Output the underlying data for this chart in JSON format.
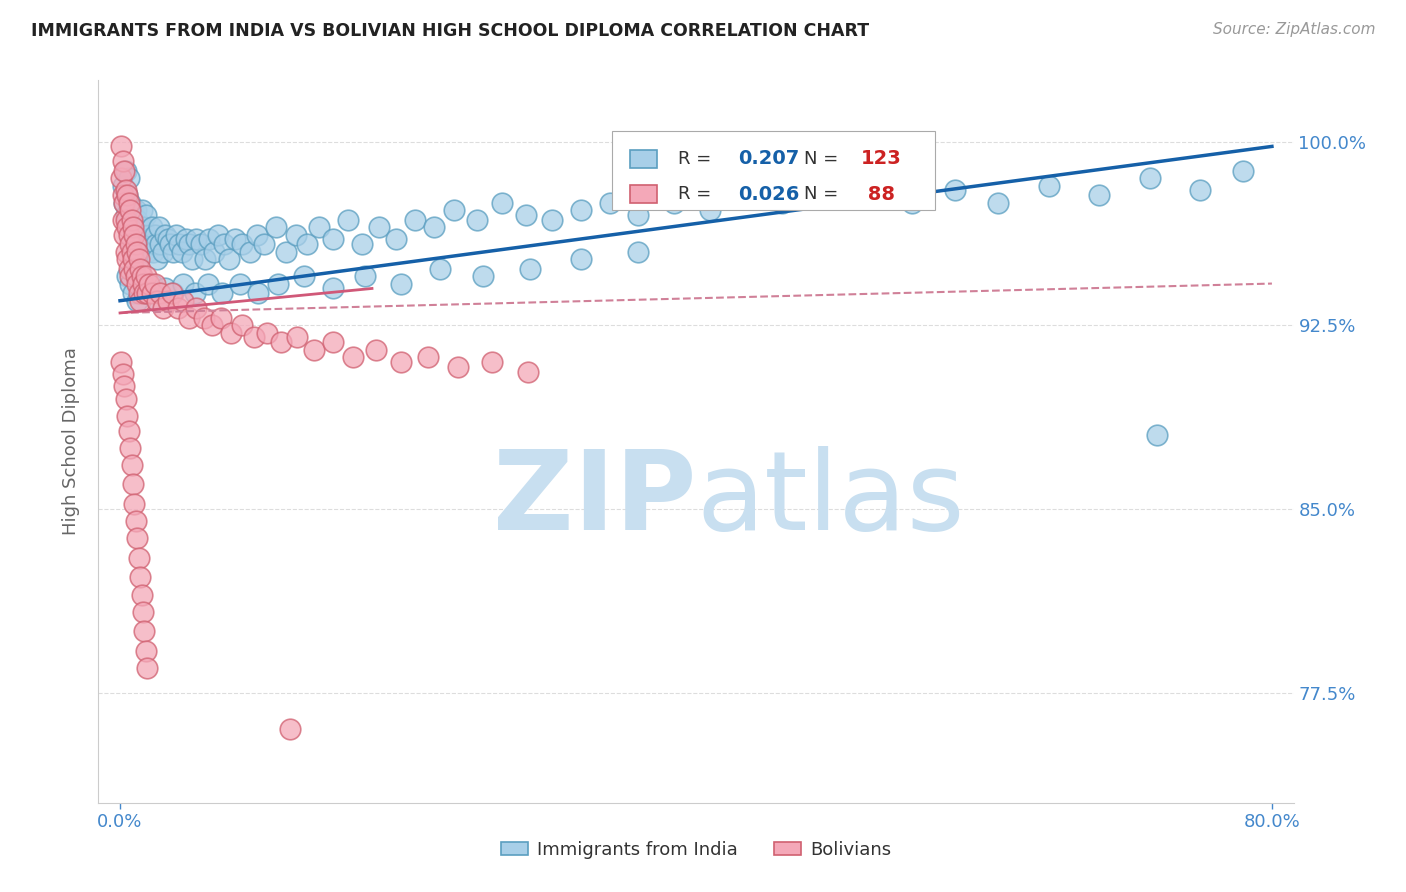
{
  "title": "IMMIGRANTS FROM INDIA VS BOLIVIAN HIGH SCHOOL DIPLOMA CORRELATION CHART",
  "source": "Source: ZipAtlas.com",
  "ylabel": "High School Diploma",
  "r_india": "0.207",
  "n_india": "123",
  "r_bolivia": "0.026",
  "n_bolivia": "88",
  "blue_scatter": "#a8cfe8",
  "blue_edge": "#5a9ec0",
  "pink_scatter": "#f4a8b8",
  "pink_edge": "#d06070",
  "trend_blue_color": "#1560a8",
  "trend_pink_solid_color": "#d05878",
  "trend_pink_dash_color": "#d08098",
  "axis_tick_color": "#4488cc",
  "ylabel_color": "#666666",
  "title_color": "#222222",
  "source_color": "#999999",
  "grid_color": "#dddddd",
  "watermark_color": "#c8dff0",
  "legend_text_color": "#333333",
  "legend_r_color": "#1560a8",
  "legend_n_color": "#cc2222",
  "legend_border_color": "#aaaaaa",
  "xlim_min": -0.015,
  "xlim_max": 0.815,
  "ylim_min": 0.73,
  "ylim_max": 1.025,
  "yticks": [
    0.775,
    0.85,
    0.925,
    1.0
  ],
  "ytick_labels": [
    "77.5%",
    "85.0%",
    "92.5%",
    "100.0%"
  ],
  "india_x": [
    0.002,
    0.003,
    0.004,
    0.004,
    0.005,
    0.005,
    0.006,
    0.006,
    0.007,
    0.007,
    0.008,
    0.008,
    0.009,
    0.009,
    0.01,
    0.01,
    0.011,
    0.011,
    0.012,
    0.012,
    0.013,
    0.013,
    0.014,
    0.015,
    0.015,
    0.016,
    0.017,
    0.018,
    0.018,
    0.019,
    0.02,
    0.021,
    0.022,
    0.023,
    0.024,
    0.025,
    0.026,
    0.027,
    0.028,
    0.03,
    0.031,
    0.033,
    0.035,
    0.037,
    0.039,
    0.041,
    0.043,
    0.046,
    0.048,
    0.05,
    0.053,
    0.056,
    0.059,
    0.062,
    0.065,
    0.068,
    0.072,
    0.076,
    0.08,
    0.085,
    0.09,
    0.095,
    0.1,
    0.108,
    0.115,
    0.122,
    0.13,
    0.138,
    0.148,
    0.158,
    0.168,
    0.18,
    0.192,
    0.205,
    0.218,
    0.232,
    0.248,
    0.265,
    0.282,
    0.3,
    0.32,
    0.34,
    0.36,
    0.385,
    0.41,
    0.435,
    0.46,
    0.49,
    0.52,
    0.55,
    0.58,
    0.61,
    0.645,
    0.68,
    0.715,
    0.75,
    0.78,
    0.005,
    0.007,
    0.009,
    0.012,
    0.015,
    0.018,
    0.022,
    0.026,
    0.031,
    0.037,
    0.044,
    0.052,
    0.061,
    0.071,
    0.083,
    0.096,
    0.11,
    0.128,
    0.148,
    0.17,
    0.195,
    0.222,
    0.252,
    0.285,
    0.32,
    0.36
  ],
  "india_y": [
    0.982,
    0.975,
    0.97,
    0.988,
    0.968,
    0.978,
    0.972,
    0.985,
    0.965,
    0.975,
    0.958,
    0.97,
    0.962,
    0.972,
    0.955,
    0.968,
    0.96,
    0.972,
    0.955,
    0.968,
    0.952,
    0.965,
    0.958,
    0.962,
    0.972,
    0.965,
    0.958,
    0.962,
    0.97,
    0.955,
    0.96,
    0.958,
    0.965,
    0.955,
    0.962,
    0.958,
    0.952,
    0.965,
    0.958,
    0.955,
    0.962,
    0.96,
    0.958,
    0.955,
    0.962,
    0.958,
    0.955,
    0.96,
    0.958,
    0.952,
    0.96,
    0.958,
    0.952,
    0.96,
    0.955,
    0.962,
    0.958,
    0.952,
    0.96,
    0.958,
    0.955,
    0.962,
    0.958,
    0.965,
    0.955,
    0.962,
    0.958,
    0.965,
    0.96,
    0.968,
    0.958,
    0.965,
    0.96,
    0.968,
    0.965,
    0.972,
    0.968,
    0.975,
    0.97,
    0.968,
    0.972,
    0.975,
    0.97,
    0.975,
    0.972,
    0.978,
    0.975,
    0.978,
    0.982,
    0.975,
    0.98,
    0.975,
    0.982,
    0.978,
    0.985,
    0.98,
    0.988,
    0.945,
    0.942,
    0.938,
    0.935,
    0.94,
    0.938,
    0.942,
    0.935,
    0.94,
    0.938,
    0.942,
    0.938,
    0.942,
    0.938,
    0.942,
    0.938,
    0.942,
    0.945,
    0.94,
    0.945,
    0.942,
    0.948,
    0.945,
    0.948,
    0.952,
    0.955
  ],
  "bolivia_x": [
    0.001,
    0.001,
    0.002,
    0.002,
    0.002,
    0.003,
    0.003,
    0.003,
    0.004,
    0.004,
    0.004,
    0.005,
    0.005,
    0.005,
    0.006,
    0.006,
    0.006,
    0.007,
    0.007,
    0.007,
    0.008,
    0.008,
    0.009,
    0.009,
    0.01,
    0.01,
    0.011,
    0.011,
    0.012,
    0.012,
    0.013,
    0.013,
    0.014,
    0.014,
    0.015,
    0.016,
    0.017,
    0.018,
    0.019,
    0.02,
    0.022,
    0.024,
    0.026,
    0.028,
    0.03,
    0.033,
    0.036,
    0.04,
    0.044,
    0.048,
    0.053,
    0.058,
    0.064,
    0.07,
    0.077,
    0.085,
    0.093,
    0.102,
    0.112,
    0.123,
    0.135,
    0.148,
    0.162,
    0.178,
    0.195,
    0.214,
    0.235,
    0.258,
    0.283,
    0.001,
    0.002,
    0.003,
    0.004,
    0.005,
    0.006,
    0.007,
    0.008,
    0.009,
    0.01,
    0.011,
    0.012,
    0.013,
    0.014,
    0.015,
    0.016,
    0.017,
    0.018,
    0.019
  ],
  "bolivia_y": [
    0.998,
    0.985,
    0.992,
    0.978,
    0.968,
    0.988,
    0.975,
    0.962,
    0.98,
    0.968,
    0.955,
    0.978,
    0.965,
    0.952,
    0.975,
    0.962,
    0.948,
    0.972,
    0.958,
    0.945,
    0.968,
    0.955,
    0.965,
    0.952,
    0.962,
    0.948,
    0.958,
    0.945,
    0.955,
    0.942,
    0.952,
    0.938,
    0.948,
    0.935,
    0.945,
    0.942,
    0.938,
    0.945,
    0.938,
    0.942,
    0.938,
    0.942,
    0.935,
    0.938,
    0.932,
    0.935,
    0.938,
    0.932,
    0.935,
    0.928,
    0.932,
    0.928,
    0.925,
    0.928,
    0.922,
    0.925,
    0.92,
    0.922,
    0.918,
    0.92,
    0.915,
    0.918,
    0.912,
    0.915,
    0.91,
    0.912,
    0.908,
    0.91,
    0.906,
    0.91,
    0.905,
    0.9,
    0.895,
    0.888,
    0.882,
    0.875,
    0.868,
    0.86,
    0.852,
    0.845,
    0.838,
    0.83,
    0.822,
    0.815,
    0.808,
    0.8,
    0.792,
    0.785
  ],
  "bolivia_outlier_x": [
    0.118
  ],
  "bolivia_outlier_y": [
    0.76
  ],
  "india_outlier_x": [
    0.72
  ],
  "india_outlier_y": [
    0.88
  ],
  "trend_india_x0": 0.0,
  "trend_india_x1": 0.8,
  "trend_india_y0": 0.935,
  "trend_india_y1": 0.998,
  "trend_bolivia_dash_x0": 0.0,
  "trend_bolivia_dash_x1": 0.8,
  "trend_bolivia_dash_y0": 0.93,
  "trend_bolivia_dash_y1": 0.942,
  "trend_bolivia_solid_x0": 0.0,
  "trend_bolivia_solid_x1": 0.175,
  "trend_bolivia_solid_y0": 0.93,
  "trend_bolivia_solid_y1": 0.94
}
